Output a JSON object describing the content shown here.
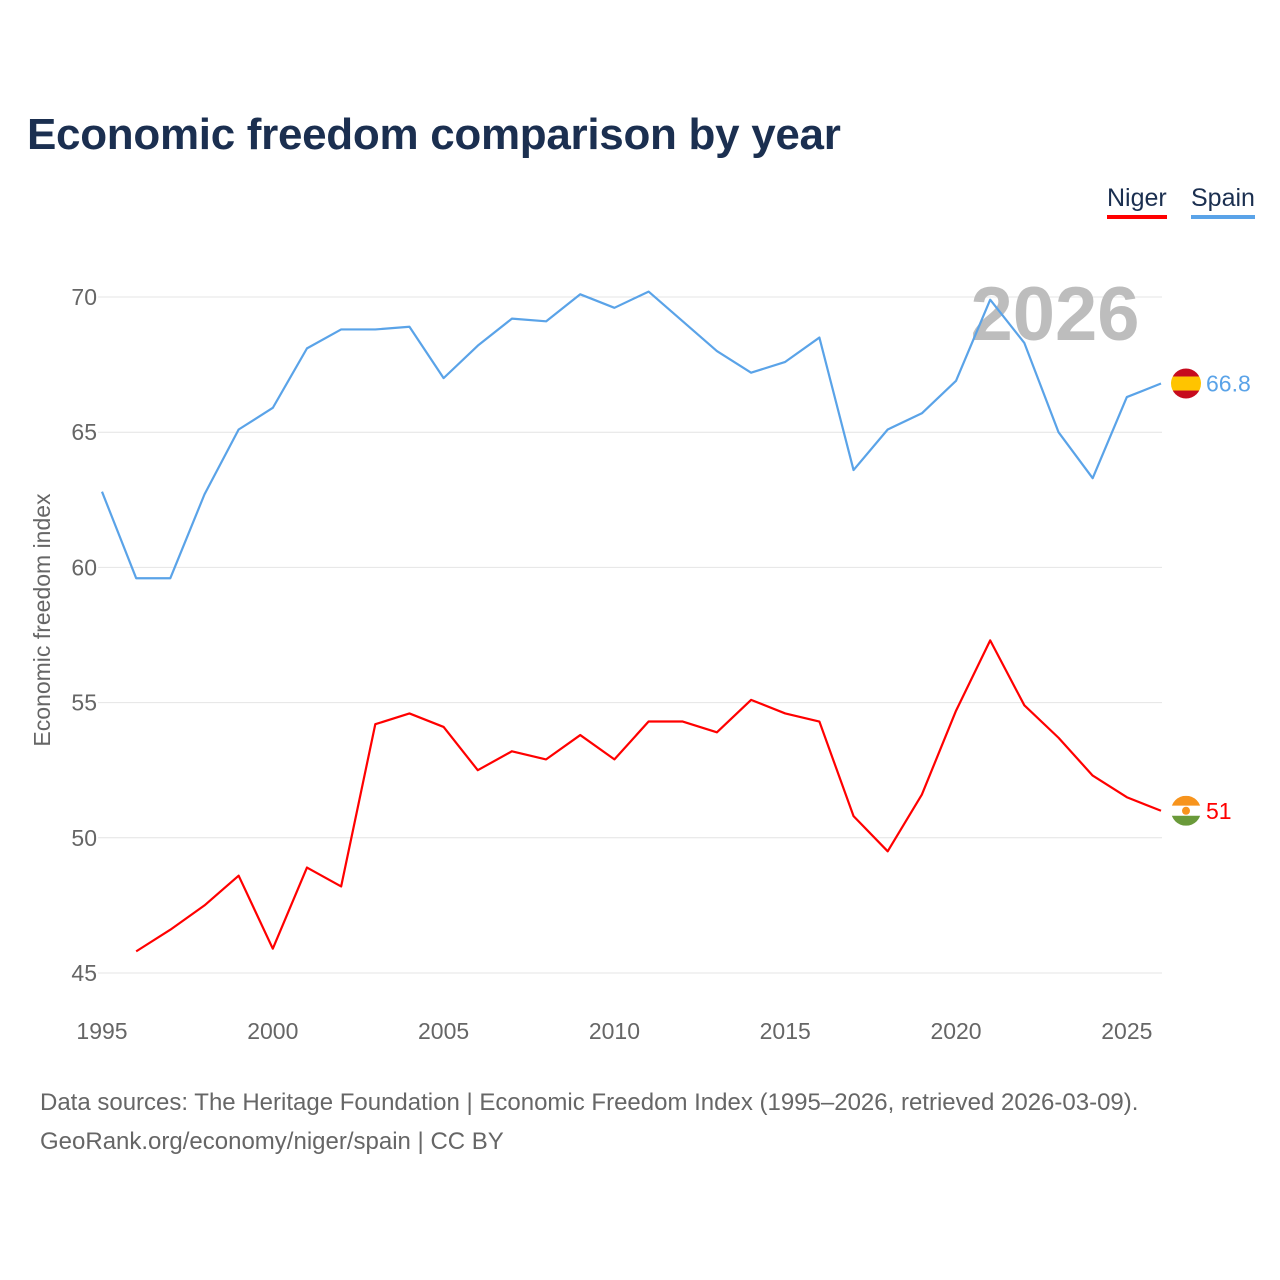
{
  "title": "Economic freedom comparison by year",
  "legend": [
    {
      "label": "Niger",
      "color": "#ff0000"
    },
    {
      "label": "Spain",
      "color": "#5aa3e8"
    }
  ],
  "footer": {
    "line1": "Data sources: The Heritage Foundation | Economic Freedom Index (1995–2026, retrieved 2026-03-09).",
    "line2": "GeoRank.org/economy/niger/spain | CC BY"
  },
  "chart_data": {
    "type": "line",
    "title": "Economic freedom comparison by year",
    "xlabel": "",
    "ylabel": "Economic freedom index",
    "xlim": [
      1995,
      2026
    ],
    "ylim": [
      45,
      72
    ],
    "xticks": [
      1995,
      2000,
      2005,
      2010,
      2015,
      2020,
      2025
    ],
    "yticks": [
      45,
      50,
      55,
      60,
      65,
      70
    ],
    "grid": true,
    "legend_position": "top-right",
    "year_watermark": "2026",
    "series": [
      {
        "name": "Spain",
        "color": "#5aa3e8",
        "end_label": "66.8",
        "flag": "spain-flag",
        "x": [
          1995,
          1996,
          1997,
          1998,
          1999,
          2000,
          2001,
          2002,
          2003,
          2004,
          2005,
          2006,
          2007,
          2008,
          2009,
          2010,
          2011,
          2012,
          2013,
          2014,
          2015,
          2016,
          2017,
          2018,
          2019,
          2020,
          2021,
          2022,
          2023,
          2024,
          2025,
          2026
        ],
        "values": [
          62.8,
          59.6,
          59.6,
          62.7,
          65.1,
          65.9,
          68.1,
          68.8,
          68.8,
          68.9,
          67.0,
          68.2,
          69.2,
          69.1,
          70.1,
          69.6,
          70.2,
          69.1,
          68.0,
          67.2,
          67.6,
          68.5,
          63.6,
          65.1,
          65.7,
          66.9,
          69.9,
          68.3,
          65.0,
          63.3,
          66.3,
          66.8
        ]
      },
      {
        "name": "Niger",
        "color": "#ff0000",
        "end_label": "51",
        "flag": "niger-flag",
        "x": [
          1996,
          1997,
          1998,
          1999,
          2000,
          2001,
          2002,
          2003,
          2004,
          2005,
          2006,
          2007,
          2008,
          2009,
          2010,
          2011,
          2012,
          2013,
          2014,
          2015,
          2016,
          2017,
          2018,
          2019,
          2020,
          2021,
          2022,
          2023,
          2024,
          2025,
          2026
        ],
        "values": [
          45.8,
          46.6,
          47.5,
          48.6,
          45.9,
          48.9,
          48.2,
          54.2,
          54.6,
          54.1,
          52.5,
          53.2,
          52.9,
          53.8,
          52.9,
          54.3,
          54.3,
          53.9,
          55.1,
          54.6,
          54.3,
          50.8,
          49.5,
          51.6,
          54.7,
          57.3,
          54.9,
          53.7,
          52.3,
          51.5,
          51.0
        ]
      }
    ]
  }
}
